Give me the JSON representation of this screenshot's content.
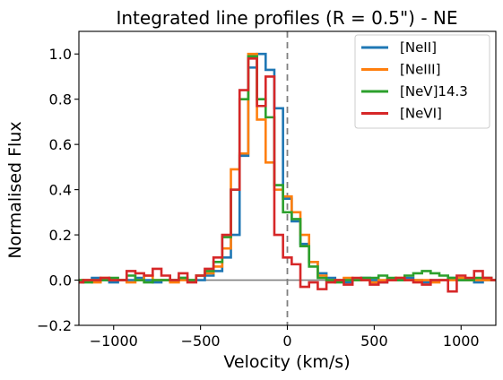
{
  "chart_data": {
    "type": "line",
    "title": "Integrated line profiles (R = 0.5\") - NE",
    "xlabel": "Velocity (km/s)",
    "ylabel": "Normalised Flux",
    "xlim": [
      -1200,
      1200
    ],
    "ylim": [
      -0.2,
      1.1
    ],
    "xticks": [
      -1000,
      -500,
      0,
      500,
      1000
    ],
    "xtick_labels": [
      "−1000",
      "−500",
      "0",
      "500",
      "1000"
    ],
    "yticks": [
      -0.2,
      0.0,
      0.2,
      0.4,
      0.6,
      0.8,
      1.0
    ],
    "ytick_labels": [
      "−0.2",
      "0.0",
      "0.2",
      "0.4",
      "0.6",
      "0.8",
      "1.0"
    ],
    "step": "mid",
    "zero_line": true,
    "vertical_dashed_line_x": 0,
    "legend_position": "top-right",
    "series": [
      {
        "name": "[NeII]",
        "color": "#1f77b4",
        "x": [
          -1200,
          -1150,
          -1100,
          -1050,
          -1000,
          -950,
          -900,
          -850,
          -800,
          -750,
          -700,
          -650,
          -600,
          -550,
          -500,
          -450,
          -400,
          -350,
          -300,
          -250,
          -200,
          -150,
          -100,
          -50,
          0,
          50,
          100,
          150,
          200,
          250,
          300,
          350,
          400,
          450,
          500,
          550,
          600,
          650,
          700,
          750,
          800,
          850,
          900,
          950,
          1000,
          1050,
          1100,
          1150,
          1200
        ],
        "y": [
          -0.01,
          0.0,
          0.01,
          0.0,
          -0.01,
          0.0,
          0.0,
          0.01,
          0.0,
          -0.01,
          0.0,
          0.0,
          0.01,
          0.0,
          0.0,
          0.02,
          0.04,
          0.1,
          0.2,
          0.55,
          0.94,
          1.0,
          0.93,
          0.76,
          0.36,
          0.26,
          0.16,
          0.08,
          0.03,
          0.01,
          0.0,
          -0.01,
          0.0,
          0.01,
          0.0,
          -0.01,
          0.0,
          0.0,
          0.01,
          0.0,
          -0.01,
          0.0,
          0.0,
          0.01,
          0.0,
          0.0,
          -0.01,
          0.0,
          0.0
        ]
      },
      {
        "name": "[NeIII]",
        "color": "#ff7f0e",
        "x": [
          -1200,
          -1150,
          -1100,
          -1050,
          -1000,
          -950,
          -900,
          -850,
          -800,
          -750,
          -700,
          -650,
          -600,
          -550,
          -500,
          -450,
          -400,
          -350,
          -300,
          -250,
          -200,
          -150,
          -100,
          -50,
          0,
          50,
          100,
          150,
          200,
          250,
          300,
          350,
          400,
          450,
          500,
          550,
          600,
          650,
          700,
          750,
          800,
          850,
          900,
          950,
          1000,
          1050,
          1100,
          1150,
          1200
        ],
        "y": [
          0.0,
          0.0,
          -0.01,
          0.01,
          0.0,
          0.0,
          -0.01,
          0.0,
          0.02,
          0.0,
          0.0,
          -0.01,
          0.0,
          0.0,
          0.02,
          0.03,
          0.06,
          0.14,
          0.49,
          0.56,
          1.0,
          0.71,
          0.52,
          0.4,
          0.37,
          0.3,
          0.2,
          0.08,
          0.02,
          0.0,
          0.0,
          0.01,
          0.0,
          0.0,
          -0.01,
          0.0,
          0.0,
          0.01,
          0.0,
          0.0,
          0.0,
          -0.01,
          0.0,
          0.0,
          0.01,
          0.0,
          0.0,
          0.0,
          0.0
        ]
      },
      {
        "name": "[NeV]14.3",
        "color": "#2ca02c",
        "x": [
          -1200,
          -1150,
          -1100,
          -1050,
          -1000,
          -950,
          -900,
          -850,
          -800,
          -750,
          -700,
          -650,
          -600,
          -550,
          -500,
          -450,
          -400,
          -350,
          -300,
          -250,
          -200,
          -150,
          -100,
          -50,
          0,
          50,
          100,
          150,
          200,
          250,
          300,
          350,
          400,
          450,
          500,
          550,
          600,
          650,
          700,
          750,
          800,
          850,
          900,
          950,
          1000,
          1050,
          1100,
          1150,
          1200
        ],
        "y": [
          0.0,
          -0.01,
          0.0,
          0.0,
          0.01,
          0.0,
          0.02,
          0.0,
          -0.01,
          0.0,
          0.0,
          0.0,
          0.01,
          0.0,
          0.02,
          0.04,
          0.08,
          0.19,
          0.4,
          0.8,
          0.99,
          0.8,
          0.72,
          0.42,
          0.3,
          0.27,
          0.15,
          0.06,
          0.01,
          0.0,
          -0.01,
          0.0,
          0.0,
          0.01,
          0.01,
          0.02,
          0.01,
          0.0,
          0.02,
          0.03,
          0.04,
          0.03,
          0.02,
          0.01,
          0.0,
          0.0,
          0.01,
          0.01,
          0.0
        ]
      },
      {
        "name": "[NeVI]",
        "color": "#d62728",
        "x": [
          -1200,
          -1150,
          -1100,
          -1050,
          -1000,
          -950,
          -900,
          -850,
          -800,
          -750,
          -700,
          -650,
          -600,
          -550,
          -500,
          -450,
          -400,
          -350,
          -300,
          -250,
          -200,
          -150,
          -100,
          -50,
          0,
          50,
          100,
          150,
          200,
          250,
          300,
          350,
          400,
          450,
          500,
          550,
          600,
          650,
          700,
          750,
          800,
          850,
          900,
          950,
          1000,
          1050,
          1100,
          1150,
          1200
        ],
        "y": [
          -0.01,
          0.0,
          0.0,
          0.01,
          0.0,
          0.0,
          0.04,
          0.03,
          0.02,
          0.05,
          0.02,
          0.0,
          0.03,
          -0.01,
          0.02,
          0.05,
          0.1,
          0.2,
          0.4,
          0.84,
          0.98,
          0.77,
          0.9,
          0.2,
          0.1,
          0.07,
          -0.03,
          -0.01,
          -0.04,
          -0.01,
          0.0,
          -0.02,
          0.01,
          0.0,
          -0.02,
          -0.01,
          0.0,
          0.01,
          0.0,
          -0.01,
          -0.02,
          0.0,
          0.0,
          -0.05,
          0.02,
          0.01,
          0.04,
          0.01,
          0.0
        ]
      }
    ]
  }
}
